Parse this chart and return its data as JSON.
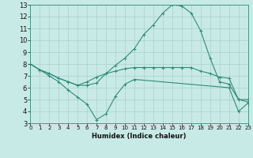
{
  "x": [
    0,
    1,
    2,
    3,
    4,
    5,
    6,
    7,
    8,
    9,
    10,
    11,
    12,
    13,
    14,
    15,
    16,
    17,
    18,
    19,
    20,
    21,
    22,
    23
  ],
  "line_max": [
    8.0,
    7.5,
    7.2,
    6.8,
    6.5,
    6.2,
    6.2,
    6.4,
    7.2,
    7.9,
    8.5,
    9.3,
    10.5,
    11.3,
    12.3,
    13.0,
    12.9,
    12.3,
    10.8,
    8.5,
    6.5,
    6.3,
    5.0,
    4.8
  ],
  "line_avg": [
    8.0,
    7.5,
    7.2,
    6.8,
    6.5,
    6.2,
    6.5,
    6.9,
    7.2,
    7.4,
    7.6,
    7.7,
    7.7,
    7.7,
    7.7,
    7.7,
    7.7,
    7.7,
    7.4,
    7.2,
    6.9,
    6.8,
    5.0,
    5.0
  ],
  "line_min_x": [
    0,
    1,
    2,
    3,
    4,
    5,
    6,
    7,
    8,
    9,
    10,
    11,
    21,
    22,
    23
  ],
  "line_min_y": [
    8.0,
    7.5,
    7.0,
    6.5,
    5.8,
    5.2,
    4.6,
    3.3,
    3.8,
    5.3,
    6.3,
    6.7,
    6.0,
    4.0,
    4.7
  ],
  "line_color": "#2e8b7a",
  "bg_color": "#c8eae6",
  "grid_color": "#aacfcb",
  "xlabel": "Humidex (Indice chaleur)",
  "xlim": [
    0,
    23
  ],
  "ylim": [
    3,
    13
  ],
  "yticks": [
    3,
    4,
    5,
    6,
    7,
    8,
    9,
    10,
    11,
    12,
    13
  ],
  "xticks": [
    0,
    1,
    2,
    3,
    4,
    5,
    6,
    7,
    8,
    9,
    10,
    11,
    12,
    13,
    14,
    15,
    16,
    17,
    18,
    19,
    20,
    21,
    22,
    23
  ]
}
